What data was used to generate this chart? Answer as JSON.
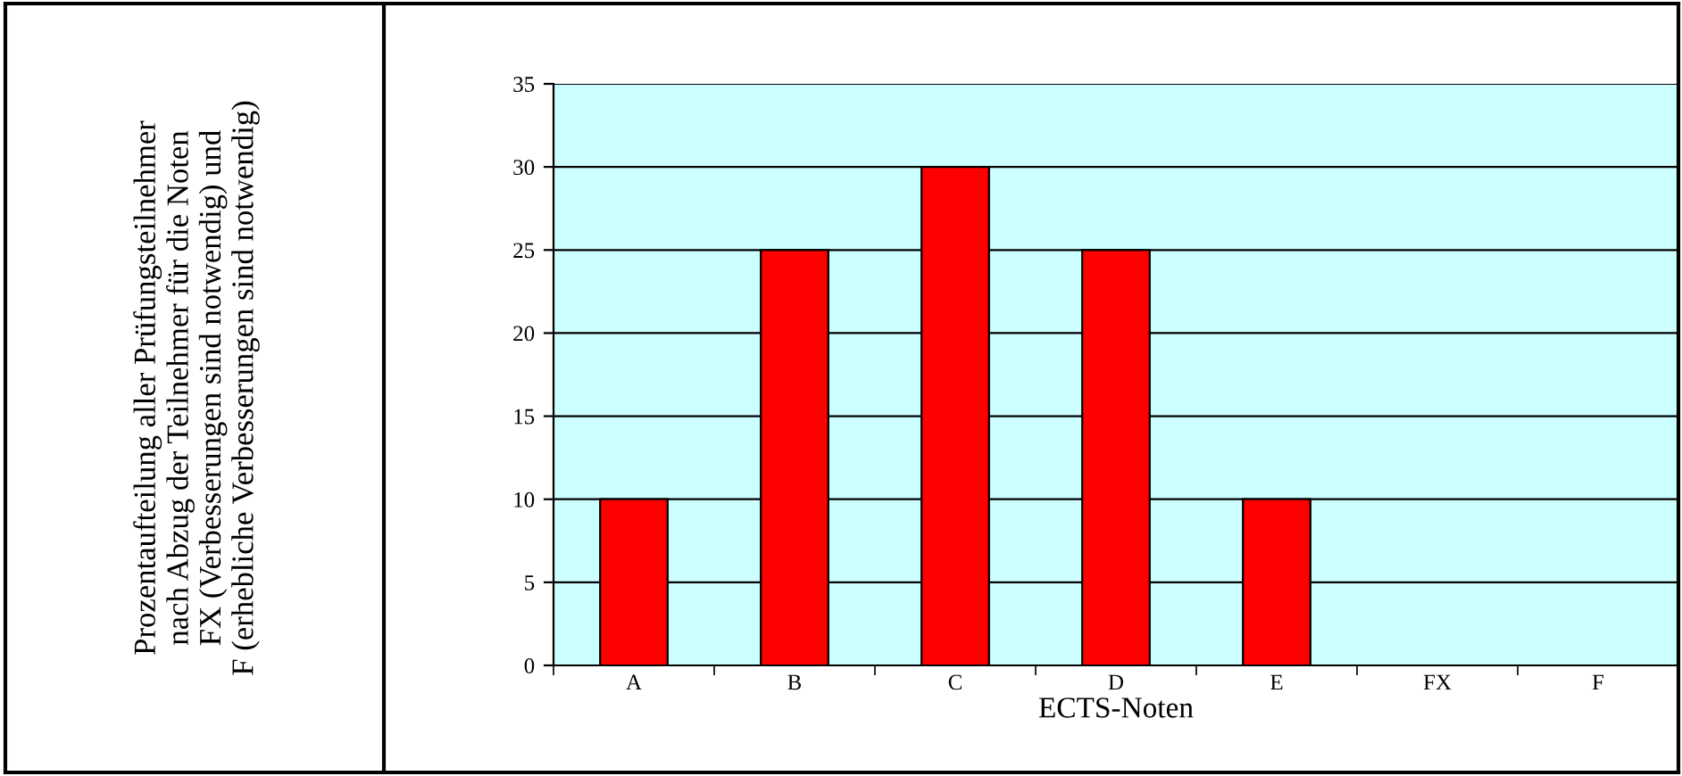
{
  "chart_data": {
    "type": "bar",
    "annotations": [
      "Prozentaufteilung aller Prüfungsteilnehmer\nnach Abzug der Teilnehmer für die Noten\nFX (Verbesserungen sind notwendig) und\nF (erhebliche Verbesserungen sind notwendig)"
    ],
    "xlabel": "ECTS-Noten",
    "categories": [
      "A",
      "B",
      "C",
      "D",
      "E",
      "FX",
      "F"
    ],
    "values": [
      10,
      25,
      30,
      25,
      10,
      null,
      null
    ],
    "color": "#ff0000",
    "ylim": [
      0,
      35
    ],
    "yticks": [
      0,
      5,
      10,
      15,
      20,
      25,
      30,
      35
    ],
    "grid": "y"
  }
}
